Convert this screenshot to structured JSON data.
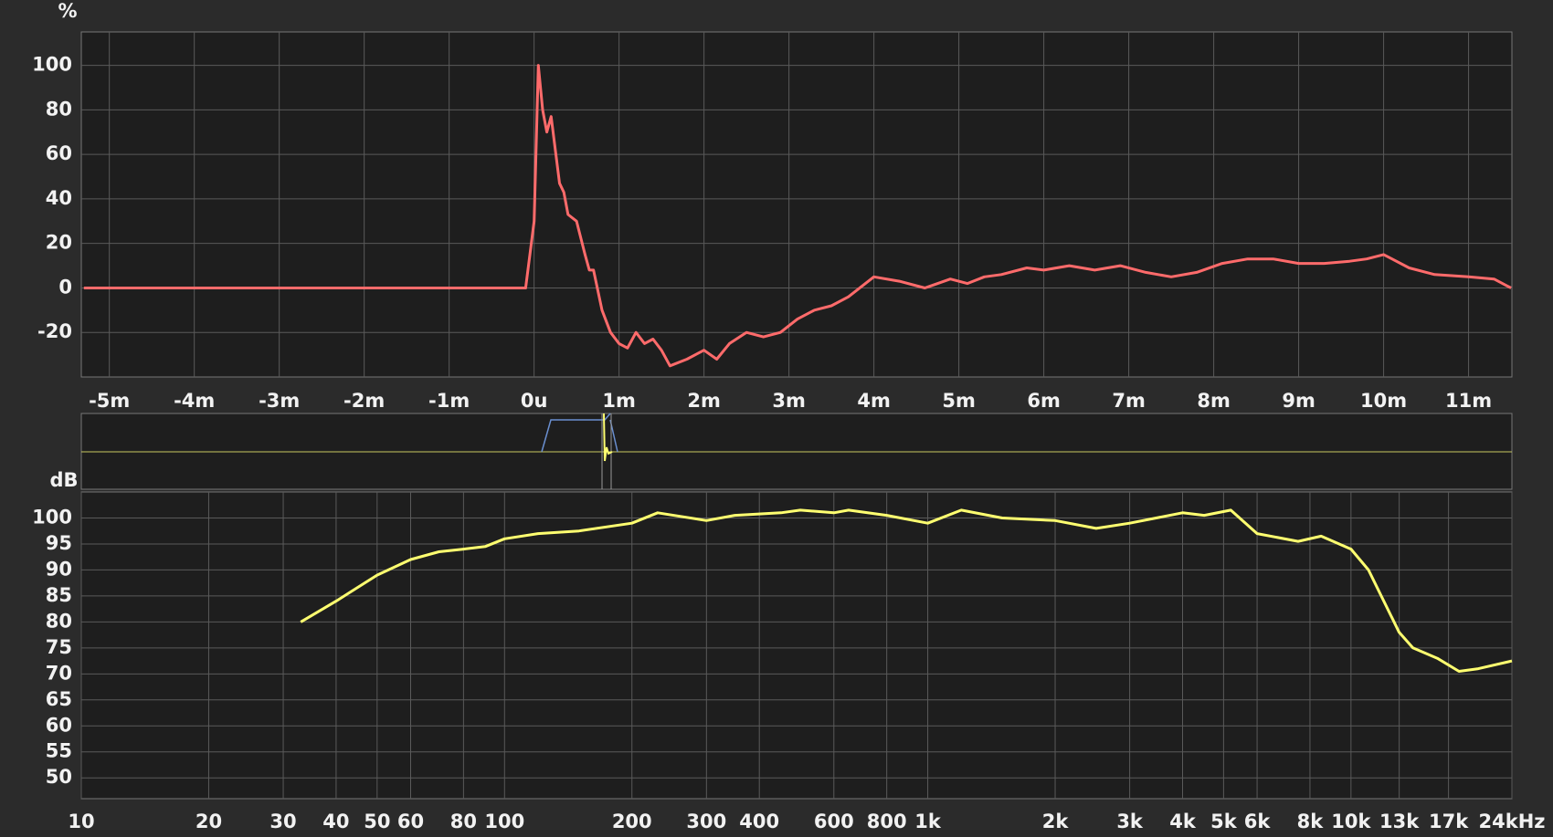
{
  "chart_data": [
    {
      "type": "line",
      "y_label": "%",
      "x": [
        -5.3,
        -0.1,
        0.0,
        0.05,
        0.1,
        0.15,
        0.2,
        0.25,
        0.3,
        0.35,
        0.4,
        0.5,
        0.6,
        0.65,
        0.7,
        0.8,
        0.9,
        1.0,
        1.1,
        1.2,
        1.3,
        1.4,
        1.5,
        1.6,
        1.8,
        2.0,
        2.15,
        2.3,
        2.5,
        2.7,
        2.9,
        3.1,
        3.3,
        3.5,
        3.7,
        4.0,
        4.3,
        4.6,
        4.9,
        5.1,
        5.3,
        5.5,
        5.8,
        6.0,
        6.3,
        6.6,
        6.9,
        7.2,
        7.5,
        7.8,
        8.1,
        8.4,
        8.7,
        9.0,
        9.3,
        9.6,
        9.8,
        10.0,
        10.3,
        10.6,
        11.0,
        11.3,
        11.5
      ],
      "series": [
        {
          "color": "#ff6b6b",
          "values": [
            0,
            0,
            30,
            100,
            80,
            70,
            77,
            62,
            47,
            43,
            33,
            30,
            15,
            8,
            8,
            -10,
            -20,
            -25,
            -27,
            -20,
            -25,
            -23,
            -28,
            -35,
            -32,
            -28,
            -32,
            -25,
            -20,
            -22,
            -20,
            -14,
            -10,
            -8,
            -4,
            5,
            3,
            0,
            4,
            2,
            5,
            6,
            9,
            8,
            10,
            8,
            10,
            7,
            5,
            7,
            11,
            13,
            13,
            11,
            11,
            12,
            13,
            15,
            9,
            6,
            5,
            4,
            0
          ]
        }
      ],
      "xlim": [
        -5.33,
        11.51
      ],
      "ylim": [
        -40,
        115
      ],
      "xticks": [
        {
          "value": -5,
          "label": "-5m"
        },
        {
          "value": -4,
          "label": "-4m"
        },
        {
          "value": -3,
          "label": "-3m"
        },
        {
          "value": -2,
          "label": "-2m"
        },
        {
          "value": -1,
          "label": "-1m"
        },
        {
          "value": 0,
          "label": "0u"
        },
        {
          "value": 1,
          "label": "1m"
        },
        {
          "value": 2,
          "label": "2m"
        },
        {
          "value": 3,
          "label": "3m"
        },
        {
          "value": 4,
          "label": "4m"
        },
        {
          "value": 5,
          "label": "5m"
        },
        {
          "value": 6,
          "label": "6m"
        },
        {
          "value": 7,
          "label": "7m"
        },
        {
          "value": 8,
          "label": "8m"
        },
        {
          "value": 9,
          "label": "9m"
        },
        {
          "value": 10,
          "label": "10m"
        },
        {
          "value": 11,
          "label": "11m"
        }
      ],
      "yticks": [
        -20,
        0,
        20,
        40,
        60,
        80,
        100
      ],
      "grid": true
    },
    {
      "type": "line",
      "y_label": "dB",
      "xscale": "log",
      "x": [
        33,
        40,
        50,
        60,
        70,
        80,
        90,
        100,
        120,
        150,
        200,
        230,
        300,
        350,
        450,
        500,
        600,
        650,
        800,
        1000,
        1200,
        1500,
        2000,
        2500,
        3000,
        4000,
        4500,
        5200,
        6000,
        7500,
        8500,
        10000,
        11000,
        13000,
        14000,
        16000,
        18000,
        20000,
        24000
      ],
      "series": [
        {
          "color": "#ffff70",
          "values": [
            80,
            84,
            89,
            92,
            93.5,
            94,
            94.5,
            96,
            97,
            97.5,
            99,
            101,
            99.5,
            100.5,
            101,
            101.5,
            101,
            101.5,
            100.5,
            99,
            101.5,
            100,
            99.5,
            98,
            99,
            101,
            100.5,
            101.5,
            97,
            95.5,
            96.5,
            94,
            90,
            78,
            75,
            73,
            70.5,
            71,
            72.5
          ]
        }
      ],
      "xlim": [
        10,
        24000
      ],
      "ylim": [
        46,
        105
      ],
      "xticks": [
        10,
        20,
        30,
        40,
        50,
        60,
        80,
        100,
        200,
        300,
        400,
        600,
        800,
        {
          "value": 1000,
          "label": "1k"
        },
        {
          "value": 2000,
          "label": "2k"
        },
        {
          "value": 3000,
          "label": "3k"
        },
        {
          "value": 4000,
          "label": "4k"
        },
        {
          "value": 5000,
          "label": "5k"
        },
        {
          "value": 6000,
          "label": "6k"
        },
        {
          "value": 8000,
          "label": "8k"
        },
        {
          "value": 10000,
          "label": "10k"
        },
        {
          "value": 13000,
          "label": "13k"
        },
        {
          "value": 17000,
          "label": "17k"
        },
        {
          "value": 24000,
          "label": "24kHz"
        }
      ],
      "yticks": [
        50,
        55,
        60,
        65,
        70,
        75,
        80,
        85,
        90,
        95,
        100
      ],
      "grid": true
    }
  ]
}
